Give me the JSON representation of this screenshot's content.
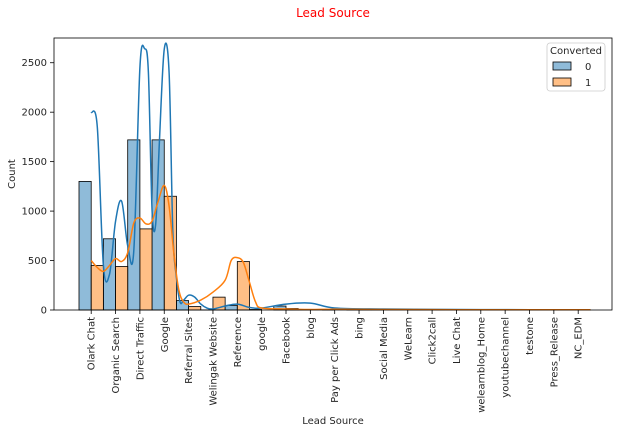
{
  "chart_data": {
    "type": "bar",
    "title": "Lead Source",
    "title_color": "#ff0000",
    "xlabel": "Lead Source",
    "ylabel": "Count",
    "ylim": [
      0,
      2750
    ],
    "yticks": [
      0,
      500,
      1000,
      1500,
      2000,
      2500
    ],
    "categories": [
      "Olark Chat",
      "Organic Search",
      "Direct Traffic",
      "Google",
      "Referral Sites",
      "Welingak Website",
      "Reference",
      "google",
      "Facebook",
      "blog",
      "Pay per Click Ads",
      "bing",
      "Social Media",
      "WeLearn",
      "Click2call",
      "Live Chat",
      "welearnblog_Home",
      "youtubechannel",
      "testone",
      "Press_Release",
      "NC_EDM"
    ],
    "legend": {
      "title": "Converted",
      "position": "top-right"
    },
    "series": [
      {
        "name": "0",
        "color": "#1f77b4",
        "values": [
          1300,
          720,
          1720,
          1720,
          95,
          1,
          45,
          5,
          40,
          1,
          1,
          5,
          2,
          0,
          1,
          0,
          0,
          0,
          1,
          2,
          0
        ]
      },
      {
        "name": "1",
        "color": "#ff7f0e",
        "values": [
          450,
          440,
          820,
          1150,
          35,
          130,
          490,
          0,
          15,
          0,
          0,
          1,
          0,
          1,
          3,
          2,
          1,
          1,
          0,
          0,
          1
        ]
      }
    ],
    "kde": [
      {
        "series": "0",
        "x": [
          0,
          0.25,
          0.5,
          0.75,
          1,
          1.25,
          1.5,
          1.75,
          2,
          2.2,
          2.35,
          2.5,
          2.65,
          2.8,
          3,
          3.2,
          3.35,
          3.5,
          3.65,
          3.8,
          4,
          4.25,
          4.5,
          4.75,
          5,
          5.5,
          6,
          6.5,
          7,
          8,
          9,
          10,
          12,
          15,
          18,
          20.5
        ],
        "y": [
          2000,
          1850,
          450,
          360,
          900,
          1100,
          650,
          600,
          2450,
          2640,
          2400,
          1000,
          870,
          1700,
          2640,
          2400,
          800,
          330,
          80,
          100,
          150,
          130,
          60,
          20,
          10,
          40,
          60,
          25,
          20,
          60,
          70,
          20,
          10,
          5,
          3,
          2
        ]
      },
      {
        "series": "1",
        "x": [
          0,
          0.25,
          0.5,
          0.75,
          1,
          1.25,
          1.5,
          1.75,
          2,
          2.25,
          2.5,
          2.75,
          3,
          3.2,
          3.4,
          3.6,
          3.8,
          4,
          4.5,
          5,
          5.5,
          5.75,
          6,
          6.25,
          6.5,
          6.75,
          7,
          8,
          9,
          10,
          12,
          15,
          18,
          20.5
        ],
        "y": [
          500,
          430,
          390,
          450,
          520,
          490,
          580,
          880,
          930,
          870,
          900,
          1100,
          1260,
          1050,
          560,
          200,
          80,
          60,
          100,
          180,
          300,
          500,
          530,
          480,
          280,
          80,
          20,
          10,
          5,
          8,
          5,
          3,
          2,
          2
        ]
      }
    ]
  }
}
